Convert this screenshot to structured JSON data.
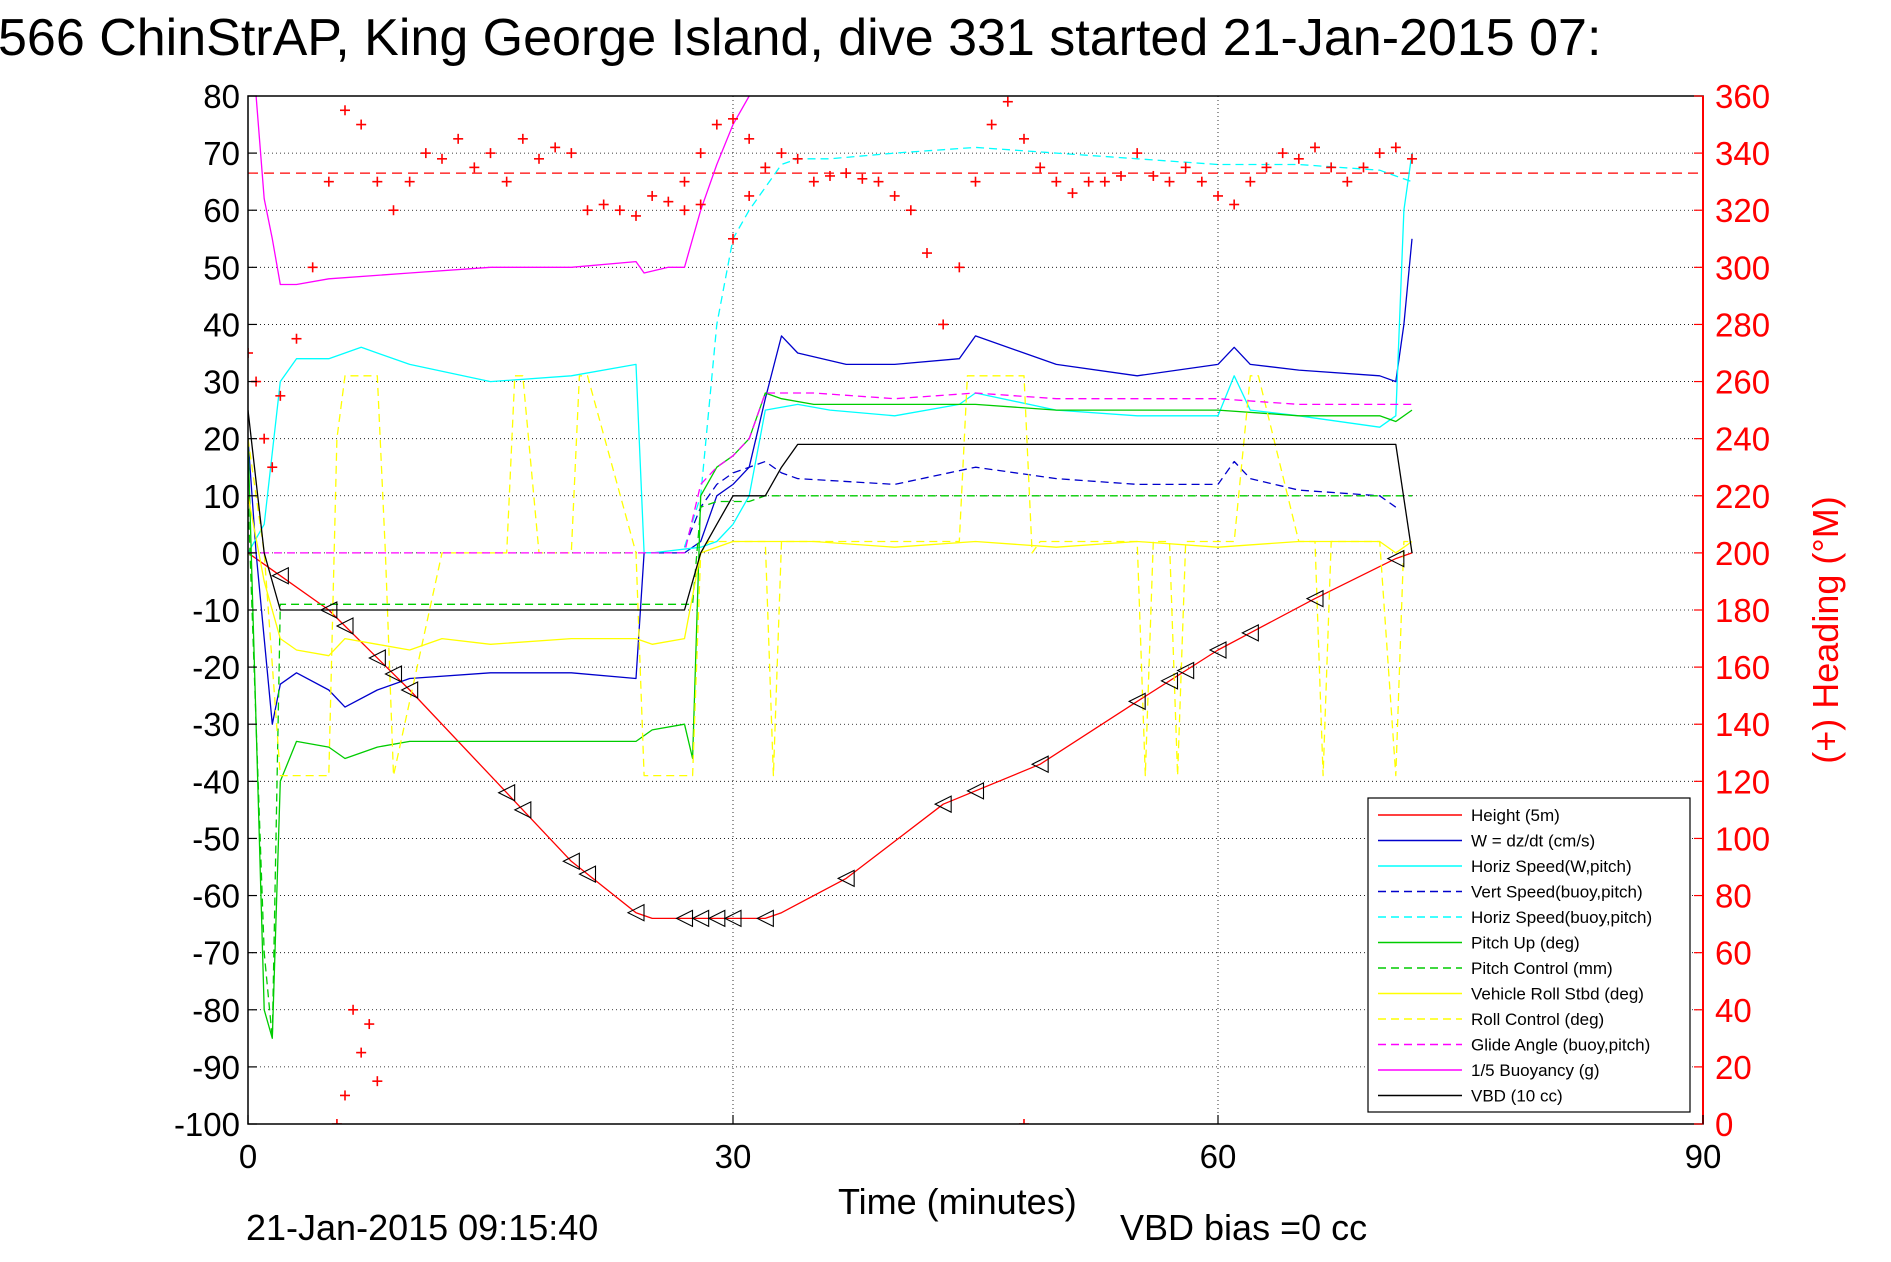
{
  "chart_data": {
    "type": "line",
    "title": "566 ChinStrAP, King George Island, dive 331 started 21-Jan-2015 07:",
    "xlabel": "Time (minutes)",
    "ylabel_right": "(+) Heading (°M)",
    "footer_left": "21-Jan-2015 09:15:40",
    "footer_right": "VBD bias =0 cc",
    "xlim": [
      0,
      90
    ],
    "ylim_left": [
      -100,
      80
    ],
    "ylim_right": [
      0,
      360
    ],
    "x_ticks": [
      0,
      30,
      60,
      90
    ],
    "y_ticks_left": [
      80,
      70,
      60,
      50,
      40,
      30,
      20,
      10,
      0,
      -10,
      -20,
      -30,
      -40,
      -50,
      -60,
      -70,
      -80,
      -90,
      -100
    ],
    "y_ticks_right": [
      360,
      340,
      320,
      300,
      280,
      260,
      240,
      220,
      200,
      180,
      160,
      140,
      120,
      100,
      80,
      60,
      40,
      20,
      0
    ],
    "grid": true,
    "legend_position": "bottom-right",
    "heading_reference": 333,
    "series": [
      {
        "name": "Height (5m)",
        "color": "#ff0000",
        "style": "solid",
        "x": [
          0,
          1,
          2,
          5,
          10,
          15,
          20,
          24,
          25,
          27,
          29,
          32,
          33,
          37,
          43,
          49,
          55,
          60,
          66,
          71,
          72
        ],
        "y": [
          0,
          -2,
          -4,
          -10,
          -24,
          -39,
          -54,
          -63,
          -64,
          -64,
          -64,
          -64,
          -63,
          -57,
          -44,
          -37,
          -26,
          -17,
          -8,
          -1,
          0
        ]
      },
      {
        "name": "W = dz/dt (cm/s)",
        "color": "#0000cc",
        "style": "solid",
        "x": [
          0,
          0.5,
          1,
          1.5,
          2,
          3,
          5,
          6,
          8,
          10,
          15,
          20,
          24,
          24.5,
          25,
          27,
          28,
          29,
          30,
          31,
          32,
          33,
          34,
          37,
          40,
          44,
          45,
          48,
          50,
          55,
          60,
          61,
          62,
          65,
          70,
          71,
          71.5,
          72
        ],
        "y": [
          20,
          0,
          -15,
          -30,
          -23,
          -21,
          -24,
          -27,
          -24,
          -22,
          -21,
          -21,
          -22,
          0,
          0,
          0,
          2,
          10,
          12,
          15,
          27,
          38,
          35,
          33,
          33,
          34,
          38,
          35,
          33,
          31,
          33,
          36,
          33,
          32,
          31,
          30,
          40,
          55
        ]
      },
      {
        "name": "Horiz Speed(W,pitch)",
        "color": "#00ffff",
        "style": "solid",
        "x": [
          0,
          1,
          2,
          3,
          5,
          7,
          10,
          15,
          20,
          24,
          24.5,
          25,
          28,
          29,
          30,
          31,
          32,
          34,
          36,
          40,
          44,
          45,
          50,
          55,
          60,
          61,
          62,
          65,
          70,
          71,
          71.5,
          72
        ],
        "y": [
          0,
          5,
          30,
          34,
          34,
          36,
          33,
          30,
          31,
          33,
          0,
          0,
          1,
          2,
          5,
          10,
          25,
          26,
          25,
          24,
          26,
          28,
          25,
          24,
          24,
          31,
          25,
          24,
          22,
          24,
          60,
          70
        ]
      },
      {
        "name": "Vert Speed(buoy,pitch)",
        "color": "#0000cc",
        "style": "dashed",
        "x": [
          27,
          28,
          29,
          30,
          31,
          32,
          33,
          34,
          40,
          45,
          50,
          55,
          60,
          61,
          62,
          65,
          70,
          71
        ],
        "y": [
          1,
          8,
          12,
          14,
          15,
          16,
          14,
          13,
          12,
          15,
          13,
          12,
          12,
          16,
          13,
          11,
          10,
          8
        ]
      },
      {
        "name": "Horiz Speed(buoy,pitch)",
        "color": "#00ffff",
        "style": "dashed",
        "x": [
          27,
          28,
          29,
          30,
          31,
          32,
          33,
          34,
          36,
          40,
          45,
          50,
          55,
          60,
          65,
          70,
          71,
          72
        ],
        "y": [
          1,
          10,
          40,
          55,
          60,
          64,
          68,
          69,
          69,
          70,
          71,
          70,
          69,
          68,
          68,
          67,
          66,
          65
        ]
      },
      {
        "name": "Pitch Up (deg)",
        "color": "#00cc00",
        "style": "solid",
        "x": [
          0,
          1,
          1.5,
          2,
          3,
          5,
          6,
          8,
          10,
          15,
          20,
          24,
          25,
          27,
          27.5,
          28,
          29,
          30,
          31,
          32,
          33,
          35,
          40,
          45,
          50,
          55,
          60,
          65,
          70,
          71,
          72
        ],
        "y": [
          20,
          -80,
          -85,
          -40,
          -33,
          -34,
          -36,
          -34,
          -33,
          -33,
          -33,
          -33,
          -31,
          -30,
          -36,
          10,
          15,
          17,
          20,
          28,
          27,
          26,
          26,
          26,
          25,
          25,
          25,
          24,
          24,
          23,
          25
        ]
      },
      {
        "name": "Pitch Control (mm)",
        "color": "#00cc00",
        "style": "dashed",
        "x": [
          0,
          1,
          1.5,
          2,
          5,
          10,
          15,
          20,
          24,
          27,
          27.5,
          28,
          29,
          30,
          31,
          32,
          33,
          35,
          40,
          45,
          50,
          55,
          60,
          65,
          70,
          71,
          72
        ],
        "y": [
          10,
          -70,
          -85,
          -9,
          -9,
          -9,
          -9,
          -9,
          -9,
          -9,
          -9,
          8,
          9,
          9,
          9,
          10,
          10,
          10,
          10,
          10,
          10,
          10,
          10,
          10,
          10,
          10,
          10
        ]
      },
      {
        "name": "Vehicle Roll Stbd (deg)",
        "color": "#ffff00",
        "style": "solid",
        "x": [
          0,
          1,
          2,
          3,
          5,
          6,
          8,
          10,
          12,
          15,
          20,
          24,
          25,
          27,
          28,
          30,
          32,
          33,
          35,
          40,
          45,
          50,
          55,
          60,
          65,
          70,
          71,
          72
        ],
        "y": [
          10,
          -5,
          -15,
          -17,
          -18,
          -15,
          -16,
          -17,
          -15,
          -16,
          -15,
          -15,
          -16,
          -15,
          0,
          2,
          2,
          2,
          2,
          1,
          2,
          1,
          2,
          1,
          2,
          2,
          0,
          2
        ]
      },
      {
        "name": "Roll Control (deg)",
        "color": "#ffff00",
        "style": "dashed",
        "x": [
          0,
          1,
          2,
          5,
          5.5,
          6,
          7,
          8,
          8.5,
          9,
          12,
          16,
          16.5,
          17,
          18,
          20,
          20.5,
          21,
          24,
          24.5,
          27,
          27.5,
          28,
          28.5,
          30,
          32,
          32.5,
          33,
          35,
          40,
          44,
          44.5,
          45,
          46,
          47,
          48,
          48.5,
          49,
          50,
          55,
          55.5,
          56,
          57,
          57.5,
          58,
          60,
          61,
          62,
          62.5,
          65,
          66,
          66.5,
          67,
          70,
          71,
          71.5,
          72
        ],
        "y": [
          20,
          0,
          -39,
          -39,
          20,
          31,
          31,
          31,
          0,
          -39,
          0,
          0,
          31,
          31,
          0,
          0,
          31,
          31,
          0,
          -39,
          -39,
          -39,
          0,
          2,
          2,
          2,
          -39,
          2,
          2,
          2,
          2,
          31,
          31,
          31,
          31,
          31,
          0,
          2,
          2,
          2,
          -39,
          2,
          2,
          -39,
          2,
          2,
          2,
          31,
          31,
          2,
          2,
          -39,
          2,
          2,
          -39,
          2,
          2
        ]
      },
      {
        "name": "Glide Angle (buoy,pitch)",
        "color": "#ff00ff",
        "style": "dashed",
        "x": [
          0,
          5,
          10,
          15,
          20,
          25,
          27,
          28,
          29,
          30,
          31,
          32,
          33,
          35,
          40,
          45,
          50,
          55,
          60,
          65,
          70,
          71,
          72
        ],
        "y": [
          0,
          0,
          0,
          0,
          0,
          0,
          0,
          12,
          15,
          17,
          20,
          28,
          28,
          28,
          27,
          28,
          27,
          27,
          27,
          26,
          26,
          26,
          26
        ]
      },
      {
        "name": "1/5 Buoyancy (g)",
        "color": "#ff00ff",
        "style": "solid",
        "x": [
          0.5,
          1,
          1.5,
          2,
          3,
          5,
          10,
          15,
          20,
          24,
          24.5,
          26,
          27,
          28,
          29,
          30,
          31,
          32,
          33
        ],
        "y": [
          80,
          62,
          55,
          47,
          47,
          48,
          49,
          50,
          50,
          51,
          49,
          50,
          50,
          60,
          68,
          75,
          80,
          85,
          90
        ]
      },
      {
        "name": "VBD (10 cc)",
        "color": "#000000",
        "style": "solid",
        "x": [
          0,
          1,
          2,
          3,
          5,
          10,
          15,
          20,
          24,
          25,
          27,
          28,
          29,
          30,
          31,
          32,
          33,
          34,
          40,
          45,
          50,
          55,
          60,
          65,
          70,
          71,
          72
        ],
        "y": [
          25,
          0,
          -10,
          -10,
          -10,
          -10,
          -10,
          -10,
          -10,
          -10,
          -10,
          0,
          5,
          10,
          10,
          10,
          15,
          19,
          19,
          19,
          19,
          19,
          19,
          19,
          19,
          19,
          0
        ]
      }
    ],
    "heading": {
      "name": "(+) Heading",
      "color": "#ff0000",
      "marker": "+",
      "x": [
        0,
        0.5,
        1,
        1.5,
        2,
        3,
        4,
        5,
        6,
        7,
        8,
        9,
        10,
        11,
        12,
        13,
        14,
        15,
        16,
        17,
        18,
        19,
        20,
        21,
        22,
        23,
        24,
        25,
        26,
        27,
        28,
        29,
        30,
        31,
        32,
        33,
        34,
        35,
        36,
        37,
        38,
        39,
        40,
        41,
        42,
        43,
        44,
        45,
        46,
        47,
        48,
        49,
        50,
        51,
        52,
        53,
        54,
        55,
        56,
        57,
        58,
        59,
        60,
        61,
        62,
        63,
        64,
        65,
        66,
        67,
        68,
        69,
        70,
        71,
        72
      ],
      "y": [
        270,
        260,
        240,
        230,
        255,
        275,
        300,
        330,
        355,
        350,
        330,
        320,
        330,
        340,
        338,
        345,
        335,
        340,
        330,
        345,
        338,
        342,
        340,
        320,
        322,
        320,
        318,
        325,
        323,
        320,
        322,
        350,
        352,
        345,
        335,
        340,
        338,
        330,
        332,
        333,
        331,
        330,
        325,
        320,
        305,
        280,
        300,
        330,
        350,
        358,
        345,
        335,
        330,
        326,
        330,
        330,
        332,
        340,
        332,
        330,
        335,
        330,
        325,
        322,
        330,
        335,
        340,
        338,
        342,
        335,
        330,
        335,
        340,
        342,
        338
      ]
    },
    "heading_outliers": {
      "x": [
        5.5,
        6,
        6.5,
        7,
        7.5,
        8,
        48,
        27,
        28,
        30,
        31
      ],
      "y": [
        0,
        10,
        40,
        25,
        35,
        15,
        0,
        330,
        340,
        310,
        325
      ]
    },
    "triangle_markers_x": [
      2,
      5,
      6,
      8,
      9,
      10,
      16,
      17,
      20,
      21,
      24,
      27,
      28,
      29,
      30,
      32,
      37,
      43,
      45,
      49,
      55,
      57,
      58,
      60,
      62,
      66,
      71
    ]
  },
  "legend_order": [
    "Height (5m)",
    "W = dz/dt (cm/s)",
    "Horiz Speed(W,pitch)",
    "Vert Speed(buoy,pitch)",
    "Horiz Speed(buoy,pitch)",
    "Pitch Up (deg)",
    "Pitch Control (mm)",
    "Vehicle Roll Stbd (deg)",
    "Roll Control (deg)",
    "Glide Angle (buoy,pitch)",
    "1/5 Buoyancy (g)",
    "VBD (10 cc)"
  ]
}
